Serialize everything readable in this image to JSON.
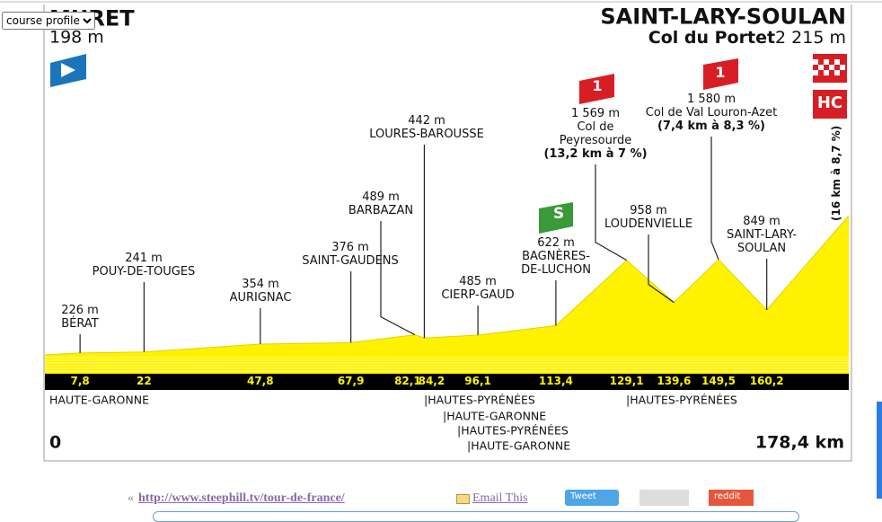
{
  "select": {
    "value": "course profile"
  },
  "chart_data": {
    "type": "area",
    "color": "#fff200",
    "x": [
      0,
      7.8,
      22,
      47.8,
      67.9,
      82.1,
      84.2,
      96.1,
      113.4,
      129.1,
      139.6,
      149.5,
      160.2,
      178.4
    ],
    "values": [
      198,
      226,
      241,
      354,
      376,
      489,
      442,
      485,
      622,
      1569,
      958,
      1580,
      849,
      2215
    ],
    "value_labels": [
      "198 m",
      "226 m",
      "241 m",
      "354 m",
      "376 m",
      "489 m",
      "442 m",
      "485 m",
      "622 m",
      "1 569 m",
      "958 m",
      "1 580 m",
      "849 m",
      "2 215 m"
    ],
    "point_labels": [
      [
        "MURET"
      ],
      [
        "BÉRAT"
      ],
      [
        "POUY-DE-TOUGES"
      ],
      [
        "AURIGNAC"
      ],
      [
        "SAINT-GAUDENS"
      ],
      [
        "BARBAZAN"
      ],
      [
        "LOURES-BAROUSSE"
      ],
      [
        "CIERP-GAUD"
      ],
      [
        "BAGNÈRES-",
        "DE-LUCHON"
      ],
      [
        "Col de",
        "Peyresourde",
        "(13,2 km à 7 %)"
      ],
      [
        "LOUDENVIELLE"
      ],
      [
        "Col de Val Louron-Azet",
        "(7,4 km à 8,3 %)"
      ],
      [
        "SAINT-LARY-",
        "SOULAN"
      ],
      [
        "SAINT-LARY-SOULAN",
        "Col du Portet"
      ]
    ],
    "finish_climb_detail": "(16 km à 8,7 %)",
    "markers": {
      "sprint": "S",
      "peyresourde": "1",
      "val_louron": "1",
      "finish": "HC"
    },
    "xlim": [
      0,
      178.4
    ],
    "xticks": [
      0,
      {
        "value": 7.8,
        "label": "7,8"
      },
      22,
      {
        "value": 47.8,
        "label": "47,8"
      },
      {
        "value": 67.9,
        "label": "67,9"
      },
      {
        "value": 82.1,
        "label": "82,1"
      },
      {
        "value": 84.2,
        "label": "84,2"
      },
      {
        "value": 96.1,
        "label": "96,1"
      },
      {
        "value": 113.4,
        "label": "113,4"
      },
      {
        "value": 129.1,
        "label": "129,1"
      },
      {
        "value": 139.6,
        "label": "139,6"
      },
      {
        "value": 149.5,
        "label": "149,5"
      },
      {
        "value": 160.2,
        "label": "160,2"
      },
      {
        "value": 178.4,
        "label": "178,4 km"
      }
    ],
    "departments": [
      "HAUTE-GARONNE",
      "|HAUTES-PYRÉNÉES",
      "|HAUTE-GARONNE",
      "|HAUTES-PYRÉNÉES",
      "|HAUTE-GARONNE",
      "|HAUTES-PYRÉNÉES"
    ]
  },
  "footer": {
    "prefix": "«",
    "link": "http://www.steephill.tv/tour-de-france/",
    "email": "Email This",
    "tweet": "Tweet",
    "reddit": "reddit"
  }
}
